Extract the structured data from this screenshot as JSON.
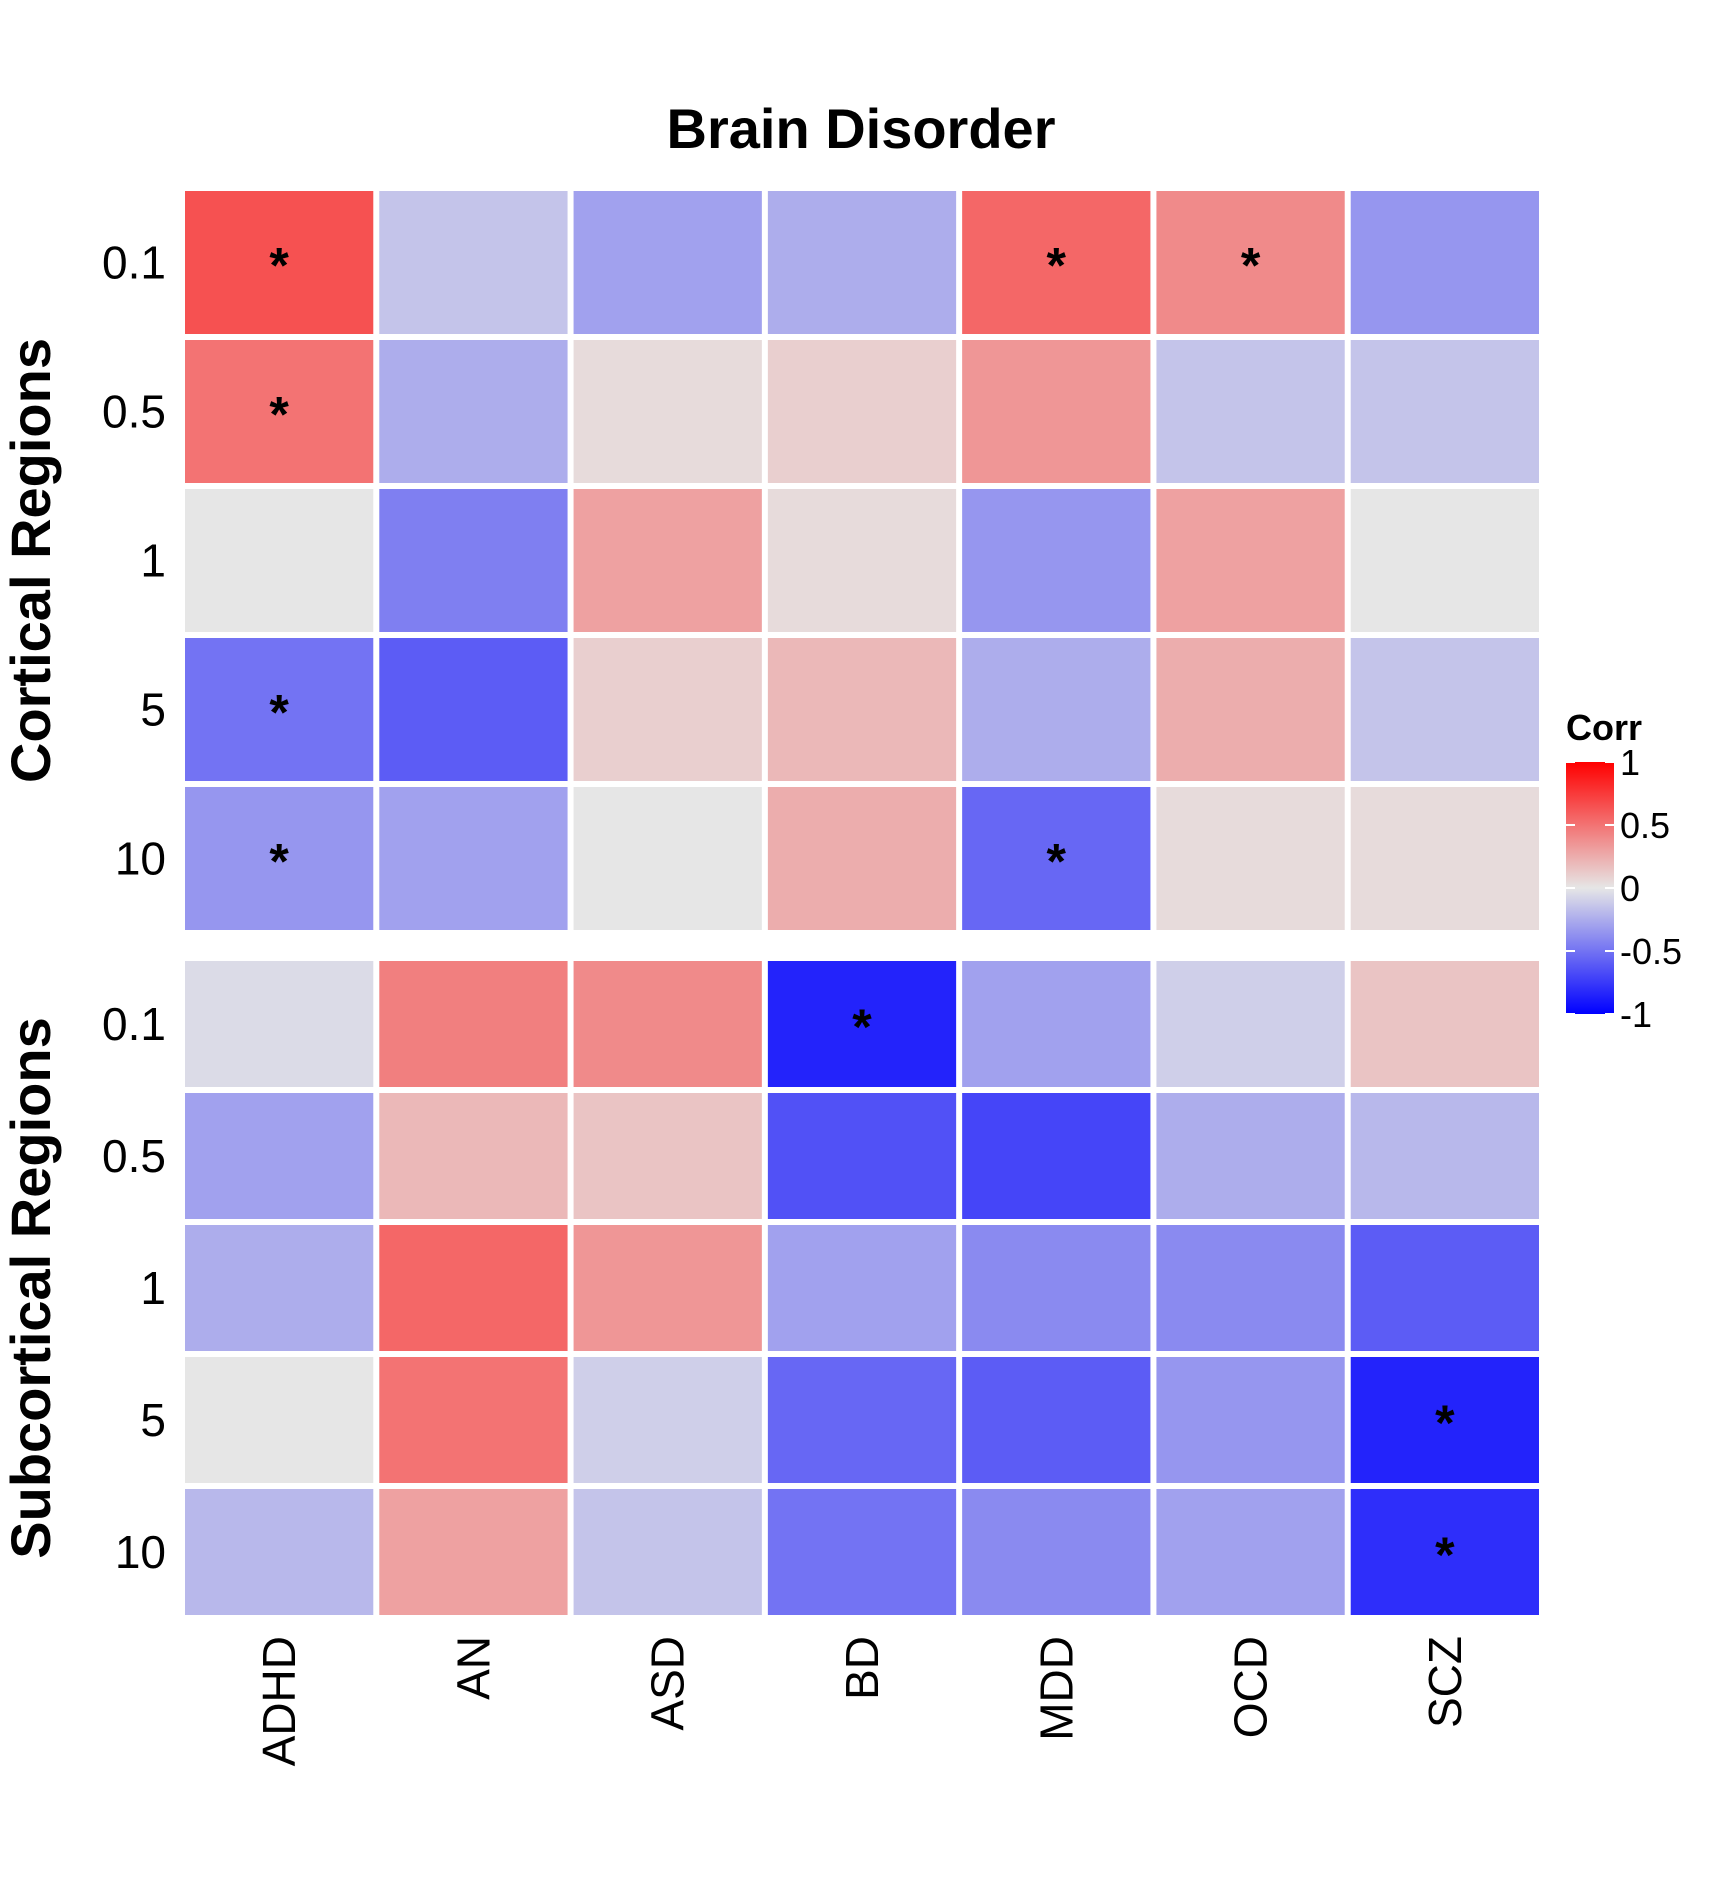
{
  "chart_data": {
    "type": "heatmap",
    "title": "Brain Disorder",
    "columns": [
      "ADHD",
      "AN",
      "ASD",
      "BD",
      "MDD",
      "OCD",
      "SCZ"
    ],
    "color_scale": {
      "title": "Corr",
      "min": -1,
      "max": 1,
      "low_color": "#0000FF",
      "mid_color": "#E6E6E6",
      "high_color": "#FF0000",
      "ticks": [
        "1",
        "0.5",
        "0",
        "-0.5",
        "-1"
      ],
      "tick_values": [
        1,
        0.5,
        0,
        -0.5,
        -1
      ]
    },
    "panels": [
      {
        "label": "Cortical Regions",
        "rows": [
          "0.1",
          "0.5",
          "1",
          "5",
          "10"
        ],
        "values": [
          [
            0.65,
            -0.15,
            -0.3,
            -0.25,
            0.55,
            0.4,
            -0.35
          ],
          [
            0.5,
            -0.25,
            0.05,
            0.1,
            0.35,
            -0.15,
            -0.15
          ],
          [
            0.0,
            -0.45,
            0.3,
            0.05,
            -0.35,
            0.3,
            0.0
          ],
          [
            -0.5,
            -0.6,
            0.1,
            0.2,
            -0.25,
            0.25,
            -0.15
          ],
          [
            -0.35,
            -0.3,
            0.0,
            0.25,
            -0.55,
            0.05,
            0.05
          ]
        ],
        "significant": [
          [
            true,
            false,
            false,
            false,
            true,
            true,
            false
          ],
          [
            true,
            false,
            false,
            false,
            false,
            false,
            false
          ],
          [
            false,
            false,
            false,
            false,
            false,
            false,
            false
          ],
          [
            true,
            false,
            false,
            false,
            false,
            false,
            false
          ],
          [
            true,
            false,
            false,
            false,
            true,
            false,
            false
          ]
        ]
      },
      {
        "label": "Subcortical Regions",
        "rows": [
          "0.1",
          "0.5",
          "1",
          "5",
          "10"
        ],
        "values": [
          [
            -0.05,
            0.45,
            0.4,
            -0.85,
            -0.3,
            -0.1,
            0.15
          ],
          [
            -0.3,
            0.2,
            0.15,
            -0.65,
            -0.7,
            -0.25,
            -0.2
          ],
          [
            -0.25,
            0.55,
            0.35,
            -0.3,
            -0.4,
            -0.4,
            -0.6
          ],
          [
            0.0,
            0.5,
            -0.1,
            -0.55,
            -0.6,
            -0.35,
            -0.85
          ],
          [
            -0.2,
            0.3,
            -0.15,
            -0.5,
            -0.4,
            -0.3,
            -0.8
          ]
        ],
        "significant": [
          [
            false,
            false,
            false,
            true,
            false,
            false,
            false
          ],
          [
            false,
            false,
            false,
            false,
            false,
            false,
            false
          ],
          [
            false,
            false,
            false,
            false,
            false,
            false,
            false
          ],
          [
            false,
            false,
            false,
            false,
            false,
            false,
            true
          ],
          [
            false,
            false,
            false,
            false,
            false,
            false,
            true
          ]
        ]
      }
    ],
    "significance_marker": "*"
  }
}
